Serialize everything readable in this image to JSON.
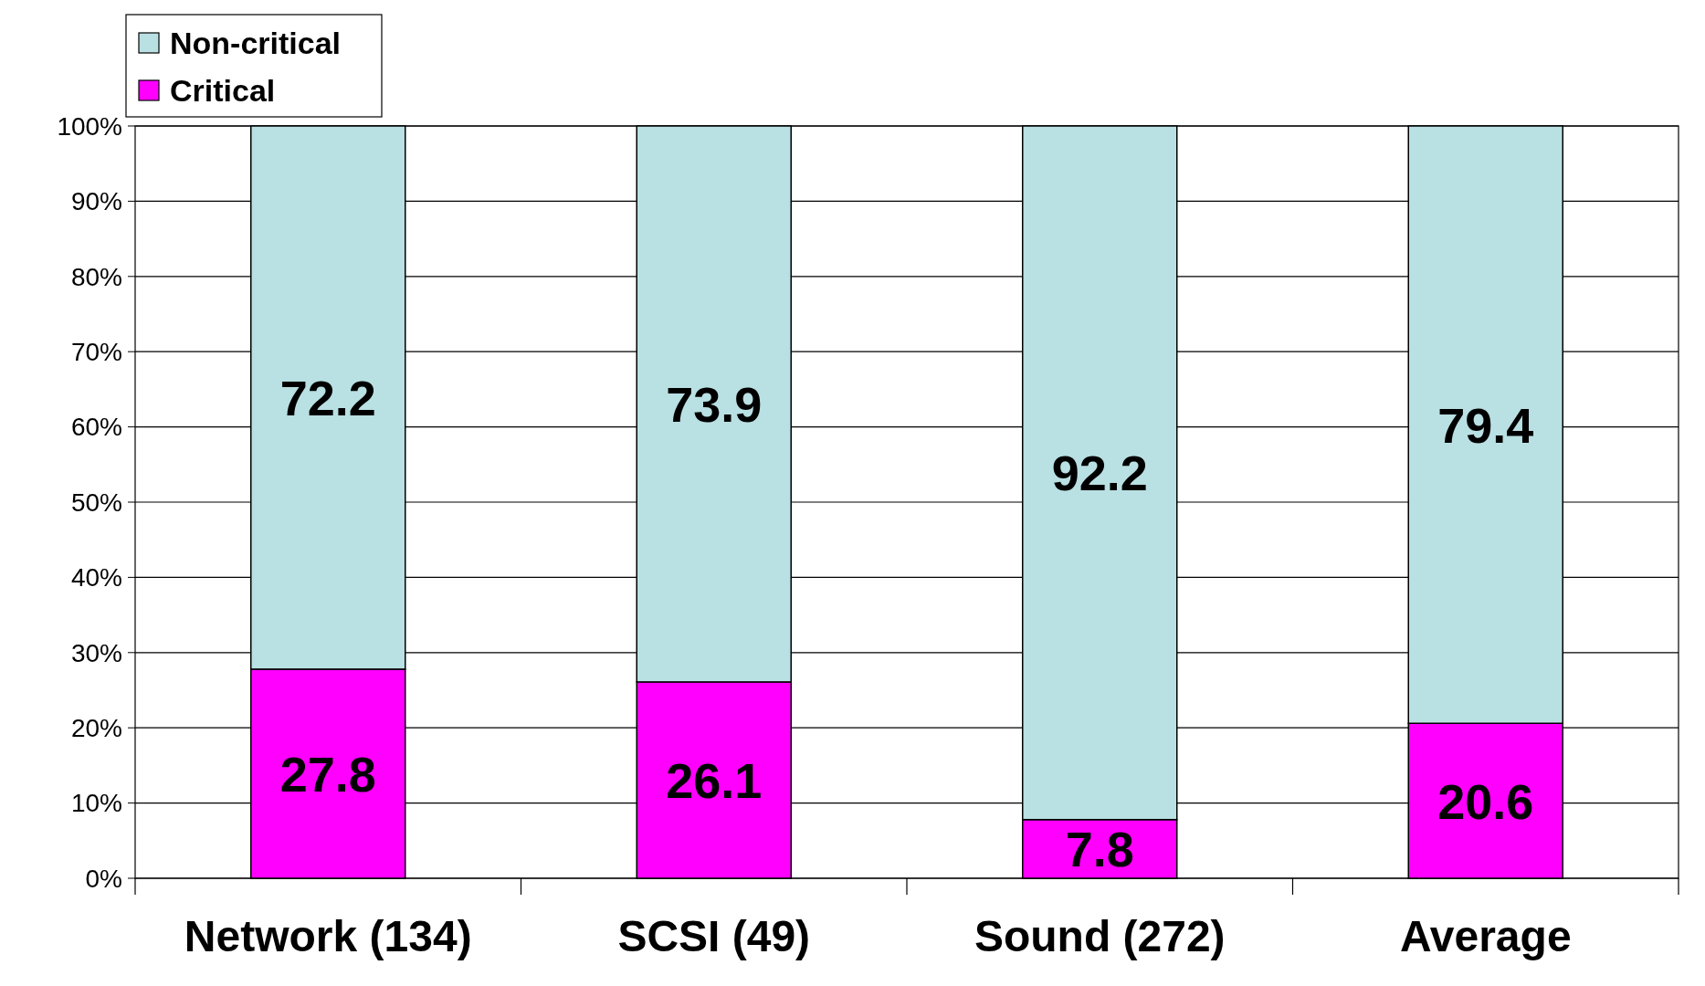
{
  "chart_data": {
    "type": "bar",
    "stacked": true,
    "categories": [
      "Network (134)",
      "SCSI (49)",
      "Sound (272)",
      "Average"
    ],
    "series": [
      {
        "name": "Critical",
        "color": "#ff00ff",
        "values": [
          27.8,
          26.1,
          7.8,
          20.6
        ]
      },
      {
        "name": "Non-critical",
        "color": "#b9e0e3",
        "values": [
          72.2,
          73.9,
          92.2,
          79.4
        ]
      }
    ],
    "ylim": [
      0,
      100
    ],
    "yticks": [
      {
        "value": 0,
        "label": "0%"
      },
      {
        "value": 10,
        "label": "10%"
      },
      {
        "value": 20,
        "label": "20%"
      },
      {
        "value": 30,
        "label": "30%"
      },
      {
        "value": 40,
        "label": "40%"
      },
      {
        "value": 50,
        "label": "50%"
      },
      {
        "value": 60,
        "label": "60%"
      },
      {
        "value": 70,
        "label": "70%"
      },
      {
        "value": 80,
        "label": "80%"
      },
      {
        "value": 90,
        "label": "90%"
      },
      {
        "value": 100,
        "label": "100%"
      }
    ],
    "grid": "y",
    "legend": "top left",
    "data_labels": true
  }
}
